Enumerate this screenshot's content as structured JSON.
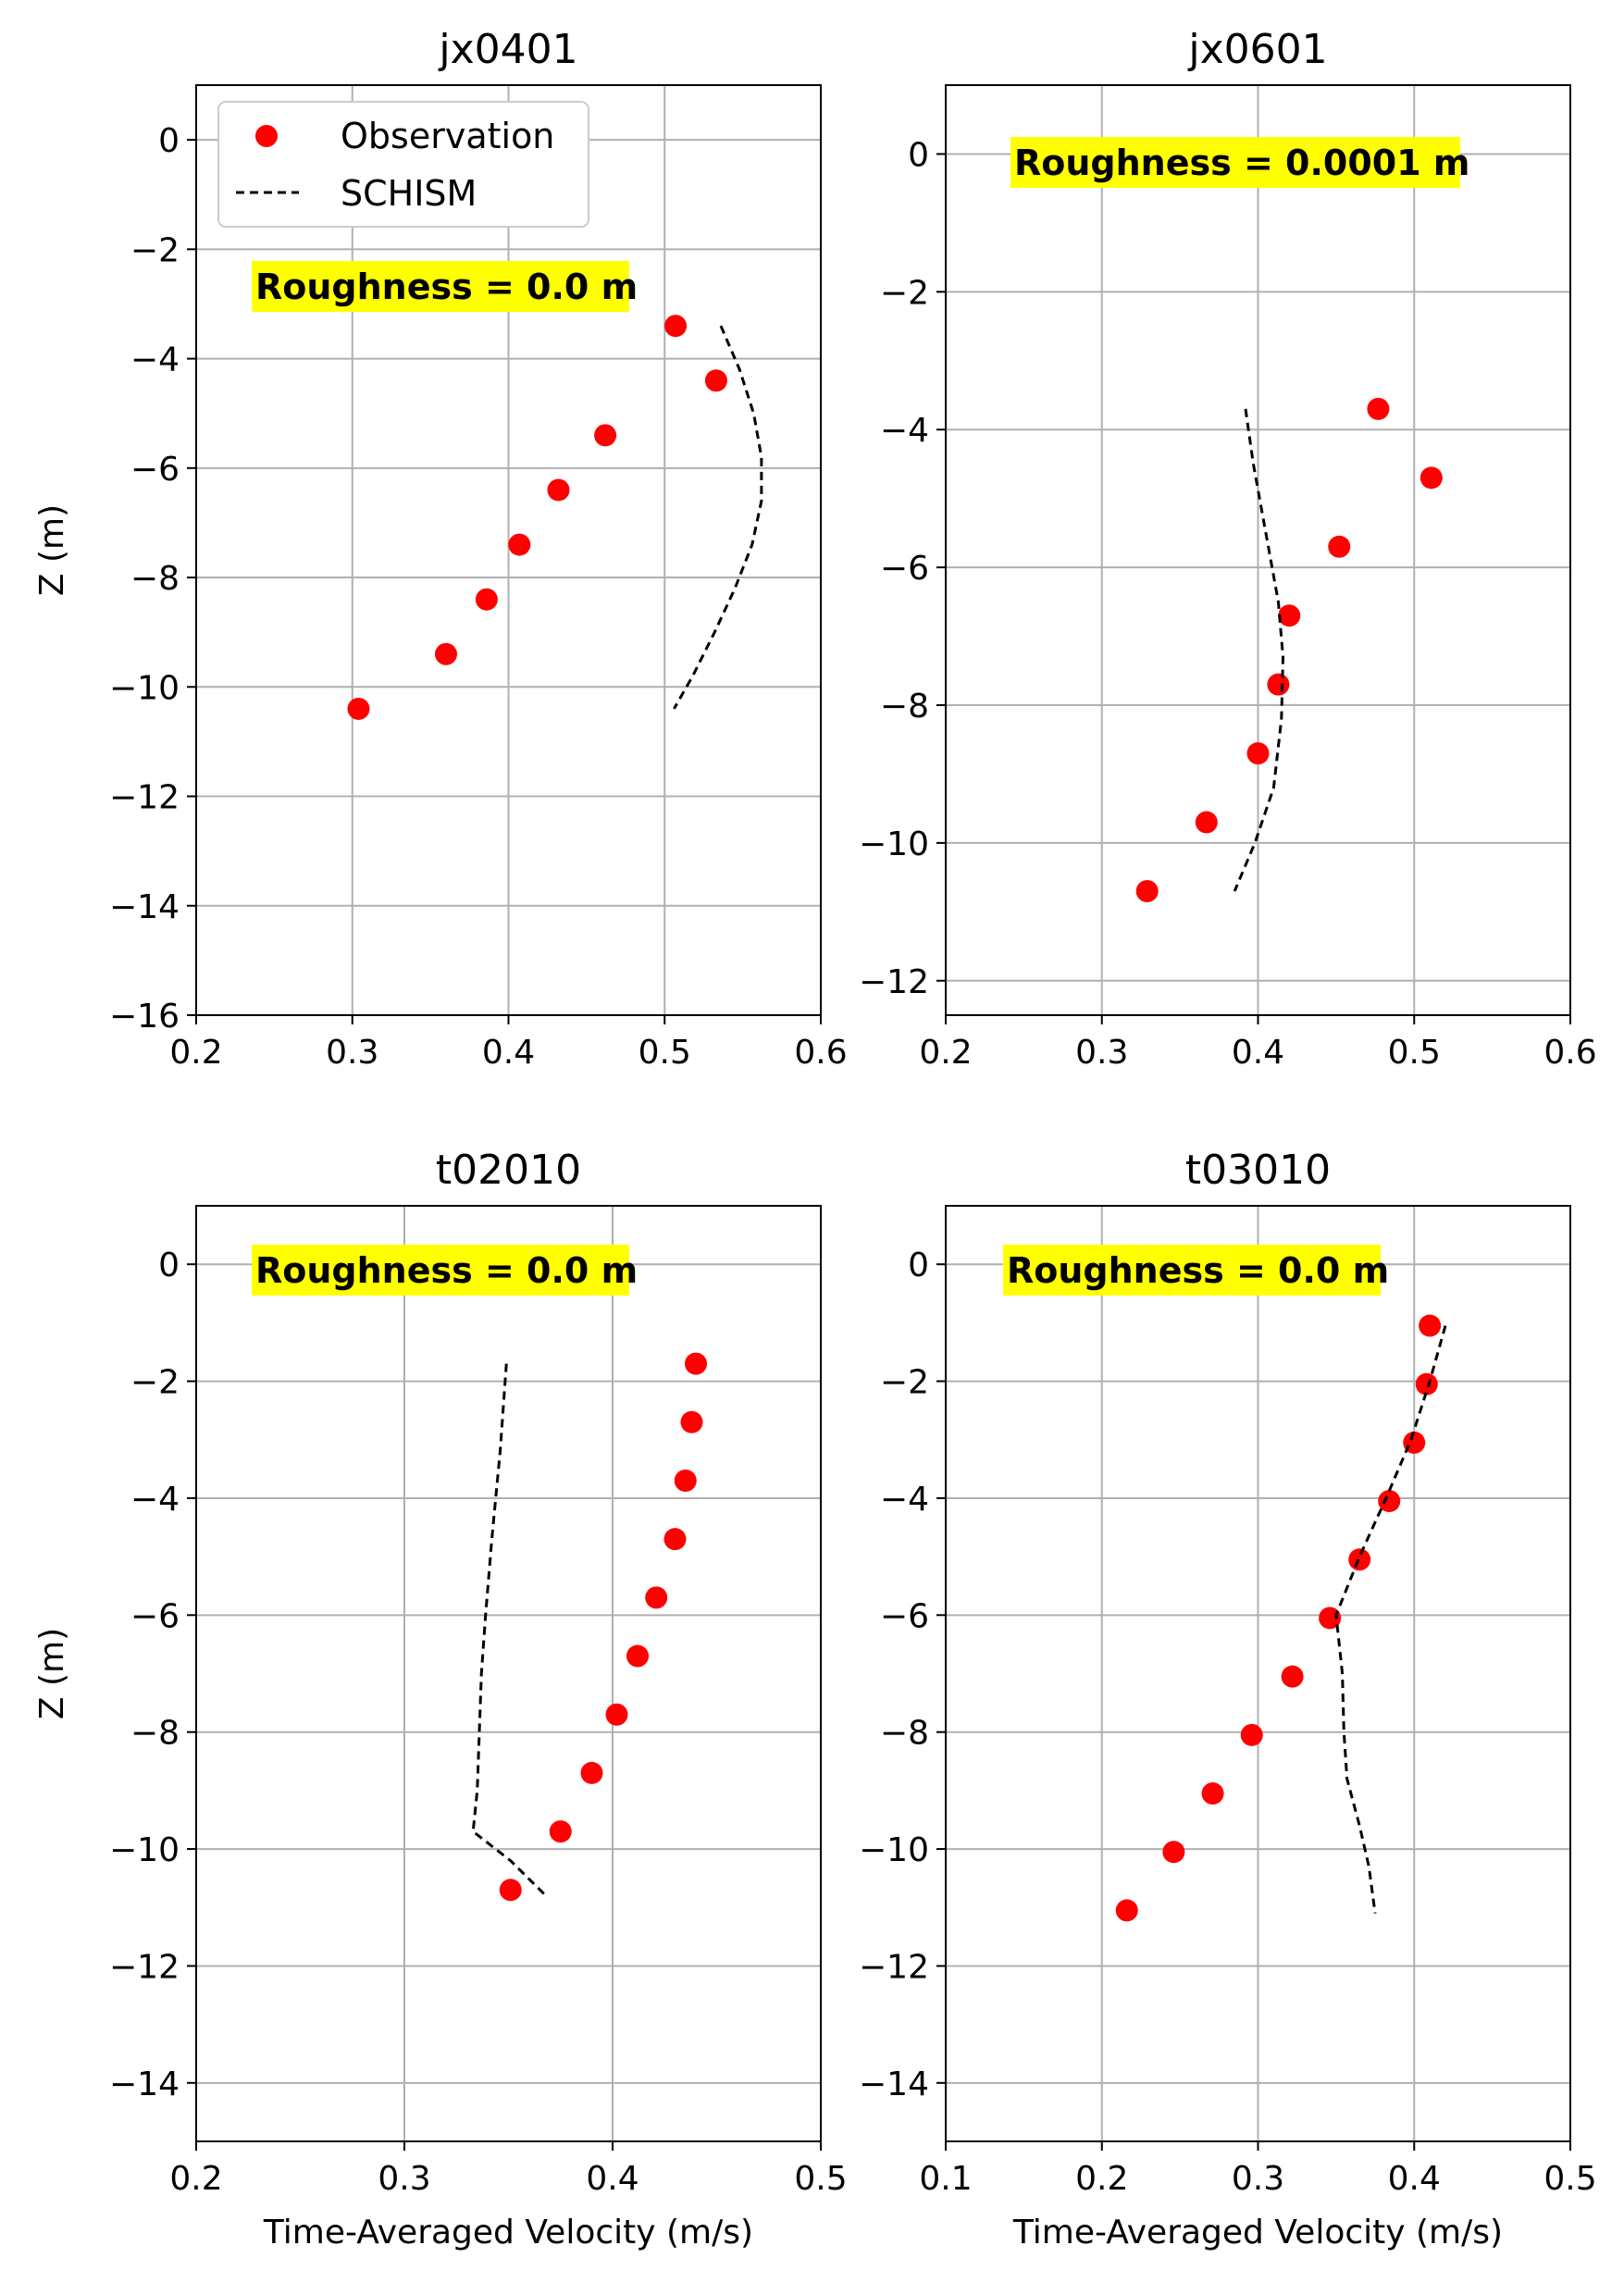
{
  "legend": {
    "observation_label": "Observation",
    "model_label": "SCHISM"
  },
  "colors": {
    "observation": "#ff0000",
    "model": "#000000",
    "annotation_bg": "#ffff00",
    "grid": "#b0b0b0"
  },
  "chart_data": [
    {
      "type": "scatter",
      "title": "jx0401",
      "xlabel": "",
      "ylabel": "Z (m)",
      "xlim": [
        0.2,
        0.6
      ],
      "ylim": [
        -16,
        1
      ],
      "xticks": [
        "0.2",
        "0.3",
        "0.4",
        "0.5",
        "0.6"
      ],
      "yticks": [
        "0",
        "−2",
        "−4",
        "−6",
        "−8",
        "−10",
        "−12",
        "−14",
        "−16"
      ],
      "grid": true,
      "legend_position": "upper-left",
      "annotation": "Roughness = 0.0 m",
      "series": [
        {
          "name": "Observation",
          "style": "markers",
          "x": [
            0.507,
            0.533,
            0.462,
            0.432,
            0.407,
            0.386,
            0.36,
            0.304
          ],
          "y": [
            -3.4,
            -4.4,
            -5.4,
            -6.4,
            -7.4,
            -8.4,
            -9.4,
            -10.4
          ]
        },
        {
          "name": "SCHISM",
          "style": "dashed",
          "x": [
            0.536,
            0.548,
            0.557,
            0.562,
            0.562,
            0.556,
            0.545,
            0.532,
            0.518,
            0.506
          ],
          "y": [
            -3.4,
            -4.2,
            -5.0,
            -5.8,
            -6.6,
            -7.4,
            -8.2,
            -9.0,
            -9.8,
            -10.4
          ]
        }
      ]
    },
    {
      "type": "scatter",
      "title": "jx0601",
      "xlabel": "",
      "ylabel": "",
      "xlim": [
        0.2,
        0.6
      ],
      "ylim": [
        -12.5,
        1
      ],
      "xticks": [
        "0.2",
        "0.3",
        "0.4",
        "0.5",
        "0.6"
      ],
      "yticks": [
        "0",
        "−2",
        "−4",
        "−6",
        "−8",
        "−10",
        "−12"
      ],
      "grid": true,
      "annotation": "Roughness = 0.0001 m",
      "series": [
        {
          "name": "Observation",
          "style": "markers",
          "x": [
            0.477,
            0.511,
            0.452,
            0.42,
            0.413,
            0.4,
            0.367,
            0.329
          ],
          "y": [
            -3.7,
            -4.7,
            -5.7,
            -6.7,
            -7.7,
            -8.7,
            -9.7,
            -10.7
          ]
        },
        {
          "name": "SCHISM",
          "style": "dashed",
          "x": [
            0.392,
            0.397,
            0.405,
            0.413,
            0.416,
            0.415,
            0.41,
            0.398,
            0.385
          ],
          "y": [
            -3.7,
            -4.5,
            -5.5,
            -6.5,
            -7.3,
            -8.2,
            -9.2,
            -10.0,
            -10.7
          ]
        }
      ]
    },
    {
      "type": "scatter",
      "title": "t02010",
      "xlabel": "Time-Averaged Velocity (m/s)",
      "ylabel": "Z (m)",
      "xlim": [
        0.2,
        0.5
      ],
      "ylim": [
        -15,
        1
      ],
      "xticks": [
        "0.2",
        "0.3",
        "0.4",
        "0.5"
      ],
      "yticks": [
        "0",
        "−2",
        "−4",
        "−6",
        "−8",
        "−10",
        "−12",
        "−14"
      ],
      "grid": true,
      "annotation": "Roughness = 0.0 m",
      "series": [
        {
          "name": "Observation",
          "style": "markers",
          "x": [
            0.44,
            0.438,
            0.435,
            0.43,
            0.421,
            0.412,
            0.402,
            0.39,
            0.375,
            0.351
          ],
          "y": [
            -1.7,
            -2.7,
            -3.7,
            -4.7,
            -5.7,
            -6.7,
            -7.7,
            -8.7,
            -9.7,
            -10.7
          ]
        },
        {
          "name": "SCHISM",
          "style": "dashed",
          "x": [
            0.349,
            0.346,
            0.342,
            0.339,
            0.337,
            0.336,
            0.335,
            0.333,
            0.351,
            0.368
          ],
          "y": [
            -1.7,
            -3.2,
            -4.7,
            -6.0,
            -7.0,
            -8.0,
            -9.0,
            -9.7,
            -10.2,
            -10.8
          ]
        }
      ]
    },
    {
      "type": "scatter",
      "title": "t03010",
      "xlabel": "Time-Averaged Velocity (m/s)",
      "ylabel": "",
      "xlim": [
        0.1,
        0.5
      ],
      "ylim": [
        -15,
        1
      ],
      "xticks": [
        "0.1",
        "0.2",
        "0.3",
        "0.4",
        "0.5"
      ],
      "yticks": [
        "0",
        "−2",
        "−4",
        "−6",
        "−8",
        "−10",
        "−12",
        "−14"
      ],
      "grid": true,
      "annotation": "Roughness = 0.0 m",
      "series": [
        {
          "name": "Observation",
          "style": "markers",
          "x": [
            0.41,
            0.408,
            0.4,
            0.384,
            0.365,
            0.346,
            0.322,
            0.296,
            0.271,
            0.246,
            0.216
          ],
          "y": [
            -1.05,
            -2.05,
            -3.05,
            -4.05,
            -5.05,
            -6.05,
            -7.05,
            -8.05,
            -9.05,
            -10.05,
            -11.05
          ]
        },
        {
          "name": "SCHISM",
          "style": "dashed",
          "x": [
            0.42,
            0.41,
            0.398,
            0.382,
            0.365,
            0.35,
            0.354,
            0.355,
            0.357,
            0.365,
            0.371,
            0.375
          ],
          "y": [
            -1.05,
            -2.0,
            -3.0,
            -4.0,
            -5.0,
            -6.0,
            -7.0,
            -8.0,
            -8.8,
            -9.6,
            -10.3,
            -11.1
          ]
        }
      ]
    }
  ]
}
